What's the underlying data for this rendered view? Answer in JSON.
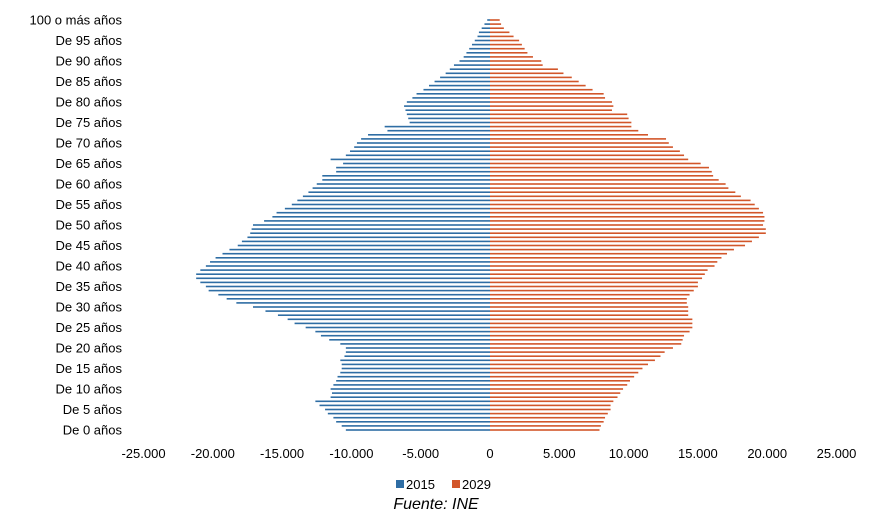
{
  "source": "Fuente: INE",
  "chart_data": {
    "type": "bar",
    "orientation": "horizontal",
    "layout": "population-pyramid",
    "y_labels": [
      "De 0 años",
      "De 5 años",
      "De 10 años",
      "De 15 años",
      "De 20 años",
      "De 25 años",
      "De 30 años",
      "De 35 años",
      "De 40 años",
      "De 45 años",
      "De 50 años",
      "De 55 años",
      "De 60 años",
      "De 65 años",
      "De 70 años",
      "De 75 años",
      "De 80 años",
      "De 85 años",
      "De 90 años",
      "De 95 años",
      "100 o más años"
    ],
    "x_ticks": [
      "-25.000",
      "-20.000",
      "-15.000",
      "-10.000",
      "-5.000",
      "0",
      "5.000",
      "10.000",
      "15.000",
      "20.000",
      "25.000"
    ],
    "x_tick_values": [
      -25000,
      -20000,
      -15000,
      -10000,
      -5000,
      0,
      5000,
      10000,
      15000,
      20000,
      25000
    ],
    "xlim": [
      -25000,
      25000
    ],
    "legend_position": "bottom",
    "colors": {
      "2015": "#2e6da4",
      "2029": "#d2562a"
    },
    "ages": [
      0,
      1,
      2,
      3,
      4,
      5,
      6,
      7,
      8,
      9,
      10,
      11,
      12,
      13,
      14,
      15,
      16,
      17,
      18,
      19,
      20,
      21,
      22,
      23,
      24,
      25,
      26,
      27,
      28,
      29,
      30,
      31,
      32,
      33,
      34,
      35,
      36,
      37,
      38,
      39,
      40,
      41,
      42,
      43,
      44,
      45,
      46,
      47,
      48,
      49,
      50,
      51,
      52,
      53,
      54,
      55,
      56,
      57,
      58,
      59,
      60,
      61,
      62,
      63,
      64,
      65,
      66,
      67,
      68,
      69,
      70,
      71,
      72,
      73,
      74,
      75,
      76,
      77,
      78,
      79,
      80,
      81,
      82,
      83,
      84,
      85,
      86,
      87,
      88,
      89,
      90,
      91,
      92,
      93,
      94,
      95,
      96,
      97,
      98,
      99,
      100
    ],
    "series": [
      {
        "name": "2015",
        "values": [
          -10400,
          -10700,
          -11100,
          -11300,
          -11700,
          -11900,
          -12300,
          -12600,
          -11500,
          -11400,
          -11500,
          -11300,
          -11100,
          -11000,
          -10800,
          -10700,
          -10700,
          -10800,
          -10500,
          -10400,
          -10400,
          -10800,
          -11600,
          -12200,
          -12600,
          -13300,
          -14100,
          -14600,
          -15300,
          -16200,
          -17100,
          -18300,
          -19000,
          -19600,
          -20300,
          -20500,
          -20900,
          -21200,
          -21200,
          -20900,
          -20500,
          -20200,
          -19800,
          -19300,
          -18800,
          -18200,
          -17900,
          -17500,
          -17300,
          -17200,
          -17100,
          -16300,
          -15700,
          -15400,
          -14800,
          -14300,
          -13900,
          -13500,
          -13100,
          -12800,
          -12500,
          -12100,
          -12100,
          -11100,
          -11100,
          -10600,
          -11500,
          -10400,
          -10100,
          -9800,
          -9600,
          -9300,
          -8800,
          -7400,
          -7600,
          -5800,
          -5900,
          -6000,
          -6100,
          -6200,
          -6000,
          -5600,
          -5300,
          -4800,
          -4400,
          -4000,
          -3600,
          -3200,
          -2900,
          -2600,
          -2200,
          -1900,
          -1700,
          -1500,
          -1300,
          -1100,
          -900,
          -800,
          -600,
          -400,
          -200
        ]
      },
      {
        "name": "2029",
        "values": [
          7900,
          8000,
          8200,
          8300,
          8500,
          8700,
          8700,
          8900,
          9200,
          9400,
          9600,
          9900,
          10100,
          10400,
          10700,
          11000,
          11400,
          11900,
          12300,
          12600,
          13200,
          13800,
          13900,
          14000,
          14400,
          14600,
          14600,
          14600,
          14300,
          14300,
          14300,
          14200,
          14200,
          14400,
          14700,
          15000,
          15000,
          15300,
          15500,
          15700,
          16200,
          16400,
          16700,
          17100,
          17600,
          18400,
          18900,
          19400,
          19900,
          19900,
          19700,
          19800,
          19800,
          19700,
          19400,
          19100,
          18800,
          18100,
          17700,
          17200,
          17000,
          16500,
          16100,
          16000,
          15800,
          15200,
          14300,
          14000,
          13700,
          13200,
          12900,
          12700,
          11400,
          10700,
          10200,
          10200,
          10000,
          9900,
          8800,
          8900,
          8800,
          8300,
          8200,
          7400,
          6900,
          6400,
          5900,
          5300,
          4900,
          3800,
          3700,
          3100,
          2700,
          2500,
          2300,
          2100,
          1700,
          1400,
          1000,
          800,
          700
        ]
      }
    ]
  }
}
